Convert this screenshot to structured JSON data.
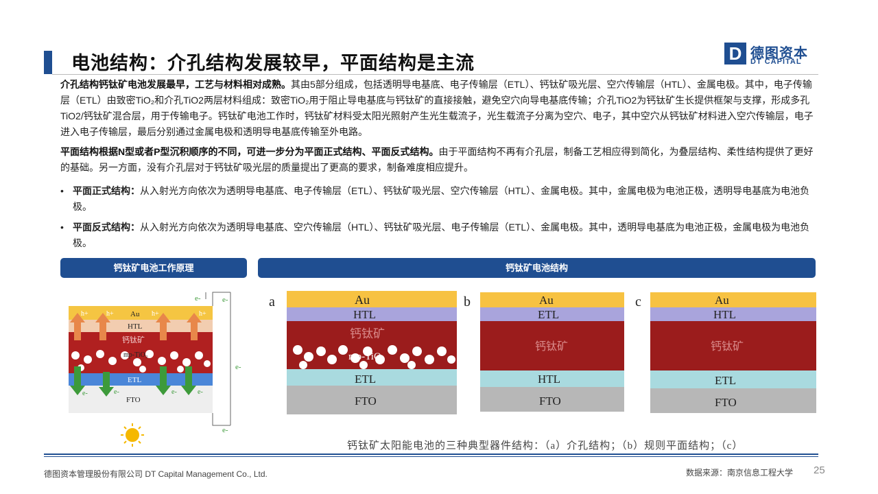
{
  "header": {
    "title": "电池结构：介孔结构发展较早，平面结构是主流",
    "logo_mark": "D",
    "logo_cn": "德图资本",
    "logo_en": "DT CAPITAL"
  },
  "paragraphs": {
    "p1_bold": "介孔结构钙钛矿电池发展最早，工艺与材料相对成熟。",
    "p1_text": "其由5部分组成，包括透明导电基底、电子传输层（ETL）、钙钛矿吸光层、空穴传输层（HTL）、金属电极。其中，电子传输层（ETL）由致密TiO₂和介孔TiO2两层材料组成：致密TiO₂用于阻止导电基底与钙钛矿的直接接触，避免空穴向导电基底传输；介孔TiO2为钙钛矿生长提供框架与支撑，形成多孔TiO2/钙钛矿混合层，用于传输电子。钙钛矿电池工作时，钙钛矿材料受太阳光照射产生光生载流子，光生载流子分离为空穴、电子，其中空穴从钙钛矿材料进入空穴传输层，电子进入电子传输层，最后分别通过金属电极和透明导电基底传输至外电路。",
    "p2_bold": "平面结构根据N型或者P型沉积顺序的不同，可进一步分为平面正式结构、平面反式结构。",
    "p2_text": "由于平面结构不再有介孔层，制备工艺相应得到简化，为叠层结构、柔性结构提供了更好的基础。另一方面，没有介孔层对于钙钛矿吸光层的质量提出了更高的要求，制备难度相应提升。"
  },
  "bullets": [
    {
      "marker": "•",
      "bold": "平面正式结构：",
      "text": "从入射光方向依次为透明导电基底、电子传输层（ETL）、钙钛矿吸光层、空穴传输层（HTL）、金属电极。其中，金属电极为电池正极，透明导电基底为电池负极。"
    },
    {
      "marker": "•",
      "bold": "平面反式结构：",
      "text": "从入射光方向依次为透明导电基底、空穴传输层（HTL）、钙钛矿吸光层、电子传输层（ETL）、金属电极。其中，透明导电基底为电池正极，金属电极为电池负极。"
    }
  ],
  "panels": {
    "left_title": "钙钛矿电池工作原理",
    "right_title": "钙钛矿电池结构"
  },
  "left_diagram": {
    "layers": {
      "au": "Au",
      "htl": "HTL",
      "perovskite": "钙钛矿",
      "mp": "mp-TiO₂",
      "etl": "ETL",
      "fto": "FTO"
    },
    "hole": "h+",
    "electron": "e-",
    "colors": {
      "au": "#f5c542",
      "htl": "#f2cdb0",
      "perovskite": "#b02020",
      "etl": "#4a86d8",
      "fto": "#eeeeee",
      "arrow_up": "#e8874a",
      "arrow_down": "#3d9a3a",
      "sun": "#f5b800"
    }
  },
  "structures": [
    {
      "letter": "a",
      "layers": [
        "Au",
        "HTL",
        "钙钛矿",
        "mp-TiO₂",
        "ETL",
        "FTO"
      ]
    },
    {
      "letter": "b",
      "layers": [
        "Au",
        "ETL",
        "钙钛矿",
        "HTL",
        "FTO"
      ]
    },
    {
      "letter": "c",
      "layers": [
        "Au",
        "HTL",
        "钙钛矿",
        "ETL",
        "FTO"
      ]
    }
  ],
  "structure_colors": {
    "au": "#f7c242",
    "htl": "#a9a4dc",
    "perovskite": "#9b1c1c",
    "etl": "#a9dadf",
    "fto": "#b7b7b7"
  },
  "caption": "钙钛矿太阳能电池的三种典型器件结构：（a）介孔结构；（b）规则平面结构；（c）",
  "footer": {
    "company": "德图资本管理股份有限公司 DT Capital Management Co., Ltd.",
    "source": "数据来源：南京信息工程大学",
    "page": "25"
  }
}
